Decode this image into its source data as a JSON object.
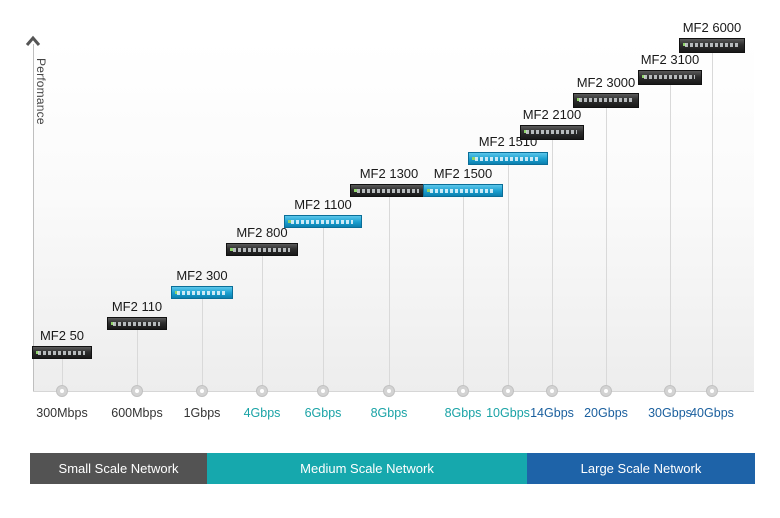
{
  "axis": {
    "y_label": "Perfomance"
  },
  "models": [
    {
      "name": "MF2 50",
      "throughput": "300Mbps",
      "tier": "small",
      "device_color": "dark"
    },
    {
      "name": "MF2 110",
      "throughput": "600Mbps",
      "tier": "small",
      "device_color": "dark"
    },
    {
      "name": "MF2 300",
      "throughput": "1Gbps",
      "tier": "small",
      "device_color": "blue"
    },
    {
      "name": "MF2 800",
      "throughput": "4Gbps",
      "tier": "medium",
      "device_color": "dark"
    },
    {
      "name": "MF2 1100",
      "throughput": "6Gbps",
      "tier": "medium",
      "device_color": "blue"
    },
    {
      "name": "MF2 1300",
      "throughput": "8Gbps",
      "tier": "medium",
      "device_color": "dark"
    },
    {
      "name": "MF2 1500",
      "throughput": "8Gbps",
      "tier": "medium",
      "device_color": "blue"
    },
    {
      "name": "MF2 1510",
      "throughput": "10Gbps",
      "tier": "medium",
      "device_color": "blue"
    },
    {
      "name": "MF2 2100",
      "throughput": "14Gbps",
      "tier": "large",
      "device_color": "dark"
    },
    {
      "name": "MF2 3000",
      "throughput": "20Gbps",
      "tier": "large",
      "device_color": "dark"
    },
    {
      "name": "MF2 3100",
      "throughput": "30Gbps",
      "tier": "large",
      "device_color": "dark"
    },
    {
      "name": "MF2 6000",
      "throughput": "40Gbps",
      "tier": "large",
      "device_color": "dark"
    }
  ],
  "bands": {
    "small": "Small Scale Network",
    "medium": "Medium Scale Network",
    "large": "Large Scale Network"
  },
  "colors": {
    "small": "#535353",
    "medium": "#16a8ad",
    "large": "#1e63a8",
    "tick_small": "#333333",
    "tick_medium": "#1aa3a6",
    "tick_large": "#1a5f9e"
  }
}
